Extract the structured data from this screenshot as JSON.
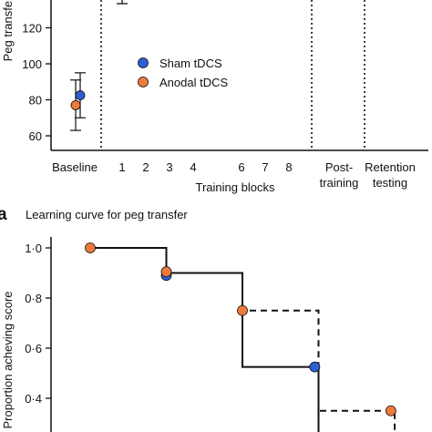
{
  "colors": {
    "sham": "#2d5fd3",
    "anodal": "#f07a3a",
    "ink": "#111111"
  },
  "chart_data": [
    {
      "type": "scatter",
      "title": "",
      "ylabel": "Peg transfer",
      "xlabel": "Training blocks",
      "ylim": [
        55,
        140
      ],
      "yticks": [
        60,
        80,
        100,
        120
      ],
      "grid": false,
      "legend_position": "middle",
      "sections": [
        {
          "name": "Baseline",
          "ticks": [
            "Baseline"
          ]
        },
        {
          "name": "Training blocks",
          "ticks": [
            "1",
            "2",
            "3",
            "4",
            "6",
            "7",
            "8"
          ]
        },
        {
          "name": "Post-training",
          "ticks": [
            "Post-",
            "training"
          ]
        },
        {
          "name": "Retention testing",
          "ticks": [
            "Retention",
            "testing"
          ]
        }
      ],
      "series": [
        {
          "name": "Sham tDCS",
          "color": "#2d5fd3",
          "points": [
            {
              "x": "Baseline",
              "y": 82.5,
              "err": 12.5
            }
          ]
        },
        {
          "name": "Anodal tDCS",
          "color": "#f07a3a",
          "points": [
            {
              "x": "Baseline",
              "y": 77,
              "err": 14
            }
          ]
        }
      ]
    },
    {
      "type": "line",
      "panel_letter": "a",
      "title": "Learning curve for peg transfer",
      "ylabel": "Proportion acheving score",
      "ylim": [
        0.3,
        1.05
      ],
      "yticks": [
        "1·0",
        "0·8",
        "0·6",
        "0·4"
      ],
      "ytick_values": [
        1.0,
        0.8,
        0.6,
        0.4
      ],
      "grid": false,
      "series": [
        {
          "name": "Sham tDCS",
          "color": "#2d5fd3",
          "line": "solid",
          "x": [
            0,
            1,
            2,
            3,
            4
          ],
          "y": [
            1.0,
            0.89,
            0.75,
            0.525,
            0.35
          ]
        },
        {
          "name": "Anodal tDCS",
          "color": "#f07a3a",
          "line": "dashed",
          "x": [
            0,
            1,
            2,
            3,
            4
          ],
          "y": [
            1.0,
            0.9,
            0.75,
            0.525,
            0.35
          ]
        }
      ],
      "markers": [
        {
          "x": 0,
          "y": 1.0,
          "series": "Anodal tDCS"
        },
        {
          "x": 1,
          "y": 0.89,
          "series": "Sham tDCS"
        },
        {
          "x": 1,
          "y": 0.905,
          "series": "Anodal tDCS"
        },
        {
          "x": 2,
          "y": 0.75,
          "series": "Anodal tDCS"
        },
        {
          "x": 2.95,
          "y": 0.525,
          "series": "Sham tDCS"
        },
        {
          "x": 3.95,
          "y": 0.35,
          "series": "Anodal tDCS"
        }
      ]
    }
  ]
}
